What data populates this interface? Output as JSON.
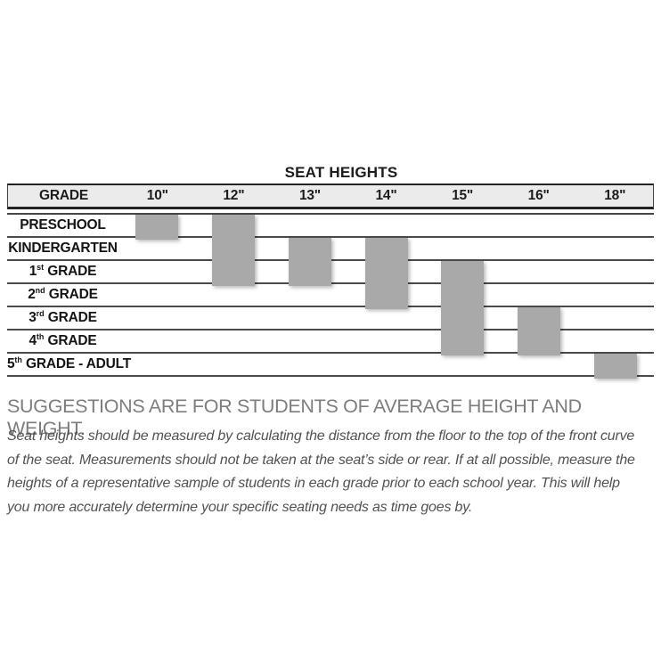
{
  "chart": {
    "title": "SEAT HEIGHTS",
    "row_header": "GRADE",
    "columns": [
      "10\"",
      "12\"",
      "13\"",
      "14\"",
      "15\"",
      "16\"",
      "18\""
    ],
    "rows": [
      {
        "pre": "PRESCHOOL",
        "sup": "",
        "post": ""
      },
      {
        "pre": "KINDERGARTEN",
        "sup": "",
        "post": ""
      },
      {
        "pre": "1",
        "sup": "st",
        "post": " GRADE"
      },
      {
        "pre": "2",
        "sup": "nd",
        "post": " GRADE"
      },
      {
        "pre": "3",
        "sup": "rd",
        "post": " GRADE"
      },
      {
        "pre": "4",
        "sup": "th",
        "post": " GRADE"
      },
      {
        "pre": "5",
        "sup": "th",
        "post": " GRADE - ADULT"
      }
    ]
  },
  "chart_data": {
    "type": "table",
    "title": "SEAT HEIGHTS",
    "row_header": "GRADE",
    "columns": [
      "10\"",
      "12\"",
      "13\"",
      "14\"",
      "15\"",
      "16\"",
      "18\""
    ],
    "rows": [
      "PRESCHOOL",
      "KINDERGARTEN",
      "1st GRADE",
      "2nd GRADE",
      "3rd GRADE",
      "4th GRADE",
      "5th GRADE - ADULT"
    ],
    "bars": [
      {
        "seat_height": "10in",
        "col": 0,
        "row_start": 0,
        "row_end": 0,
        "grades": "PRESCHOOL"
      },
      {
        "seat_height": "12in",
        "col": 1,
        "row_start": 0,
        "row_end": 2,
        "grades": "PRESCHOOL - 1st GRADE"
      },
      {
        "seat_height": "13in",
        "col": 2,
        "row_start": 1,
        "row_end": 2,
        "grades": "KINDERGARTEN - 1st GRADE"
      },
      {
        "seat_height": "14in",
        "col": 3,
        "row_start": 1,
        "row_end": 3,
        "grades": "KINDERGARTEN - 2nd GRADE"
      },
      {
        "seat_height": "15in",
        "col": 4,
        "row_start": 2,
        "row_end": 5,
        "grades": "1st GRADE - 4th GRADE"
      },
      {
        "seat_height": "16in",
        "col": 5,
        "row_start": 4,
        "row_end": 5,
        "grades": "3rd GRADE - 4th GRADE"
      },
      {
        "seat_height": "18in",
        "col": 6,
        "row_start": 6,
        "row_end": 6,
        "grades": "5th GRADE - ADULT"
      }
    ],
    "bar_color": "#a9a9a9",
    "header_bg": "#ebebeb",
    "line_color": "#4a4a4a"
  },
  "notes": {
    "heading": "SUGGESTIONS ARE FOR STUDENTS OF AVERAGE HEIGHT AND WEIGHT.",
    "body": "Seat heights should be measured by calculating the distance from the floor to the top of the front curve of the seat. Measurements should not be taken at the seat’s side or rear.  If at all possible, measure the heights of a representative sample of students in each grade prior to each school year.  This will help you more accurately determine your specific seating needs as time goes by."
  }
}
